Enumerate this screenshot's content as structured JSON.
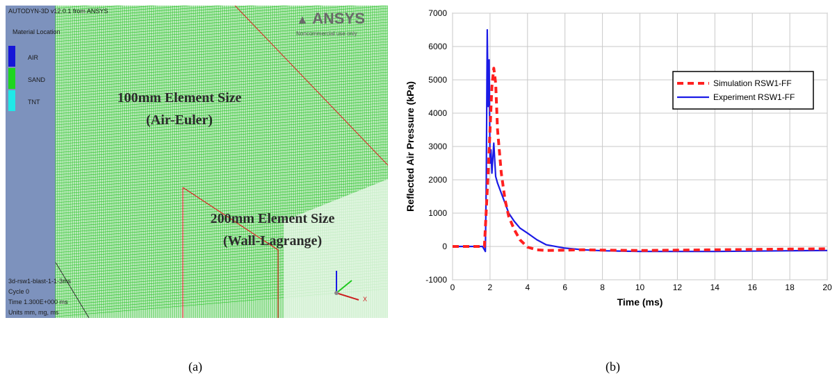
{
  "panel_a": {
    "header": "AUTODYN-3D v12.0.1 from ANSYS",
    "material_title": "Material Location",
    "materials": [
      {
        "label": "AIR",
        "color": "#1616d8"
      },
      {
        "label": "SAND",
        "color": "#1ed61e"
      },
      {
        "label": "TNT",
        "color": "#20e8e8"
      }
    ],
    "logo_text": "ANSYS",
    "logo_sub": "Noncommercial use only",
    "label_euler_1": "100mm Element Size",
    "label_euler_2": "(Air-Euler)",
    "label_lag_1": "200mm Element Size",
    "label_lag_2": "(Wall-Lagrange)",
    "info": [
      "3d-rsw1-blast-1-1-3ms",
      "Cycle 0",
      "Time 1.300E+000 ms",
      "Units mm, mg, ms"
    ],
    "axis_x": "X",
    "caption": "(a)"
  },
  "chart_data": {
    "type": "line",
    "xlabel": "Time (ms)",
    "ylabel": "Reflected Air Pressure (kPa)",
    "xlim": [
      0,
      20
    ],
    "ylim": [
      -1000,
      7000
    ],
    "x_ticks": [
      0,
      2,
      4,
      6,
      8,
      10,
      12,
      14,
      16,
      18,
      20
    ],
    "y_ticks": [
      -1000,
      0,
      1000,
      2000,
      3000,
      4000,
      5000,
      6000,
      7000
    ],
    "grid": true,
    "legend_position": "right",
    "series": [
      {
        "name": "Simulation RSW1-FF",
        "color": "#ff2020",
        "style": "dashed",
        "x": [
          0,
          1.7,
          1.9,
          2.0,
          2.1,
          2.2,
          2.3,
          2.4,
          2.6,
          2.8,
          3.0,
          3.3,
          3.6,
          4.0,
          4.5,
          5.0,
          6.0,
          7.0,
          8.0,
          10.0,
          12.0,
          14.0,
          16.0,
          18.0,
          20.0
        ],
        "y": [
          0,
          0,
          2200,
          3500,
          4800,
          5350,
          4900,
          3500,
          2200,
          1400,
          900,
          500,
          200,
          -20,
          -100,
          -120,
          -110,
          -100,
          -110,
          -120,
          -110,
          -100,
          -90,
          -80,
          -70
        ]
      },
      {
        "name": "Experiment RSW1-FF",
        "color": "#1a1ae6",
        "style": "solid",
        "x": [
          0,
          1.6,
          1.75,
          1.8,
          1.85,
          1.9,
          1.95,
          2.0,
          2.05,
          2.1,
          2.2,
          2.3,
          2.4,
          2.6,
          2.8,
          3.0,
          3.3,
          3.6,
          4.0,
          4.5,
          5.0,
          6.0,
          7.0,
          8.0,
          10.0,
          12.0,
          14.0,
          16.0,
          18.0,
          20.0
        ],
        "y": [
          0,
          0,
          -150,
          2000,
          6500,
          4200,
          5600,
          2500,
          2900,
          2200,
          3100,
          2100,
          1900,
          1600,
          1300,
          1000,
          750,
          550,
          400,
          200,
          50,
          -50,
          -100,
          -130,
          -150,
          -150,
          -150,
          -140,
          -130,
          -120
        ]
      }
    ],
    "caption": "(b)"
  }
}
